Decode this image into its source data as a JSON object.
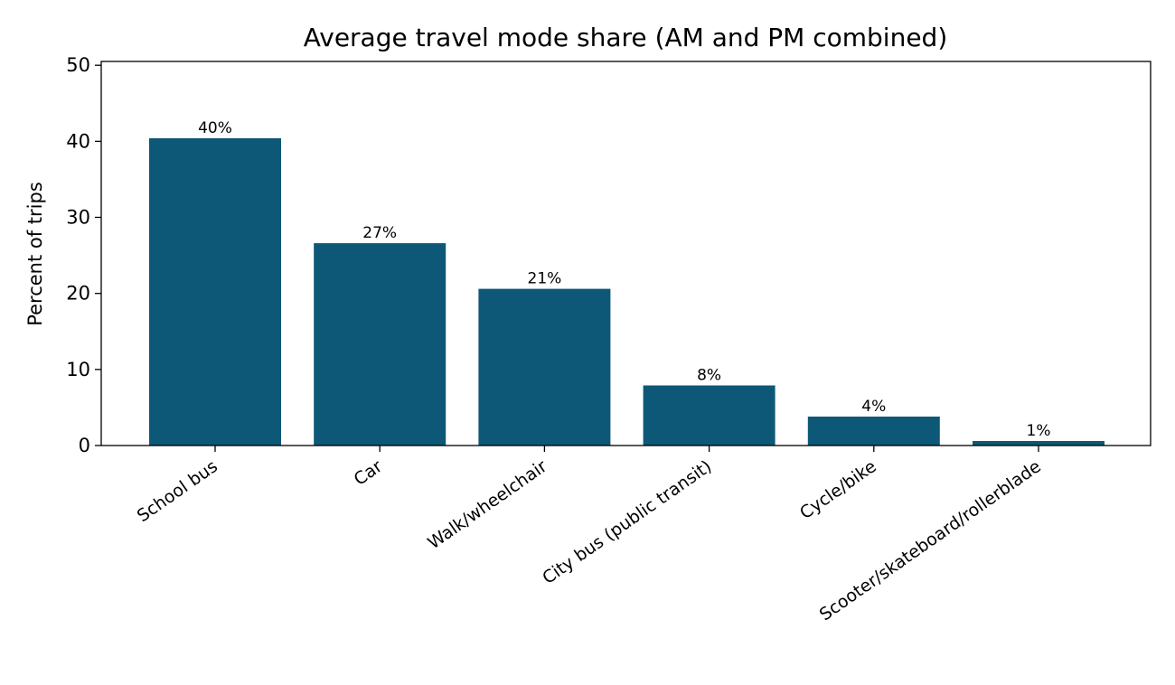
{
  "chart_data": {
    "type": "bar",
    "title": "Average travel mode share (AM and PM combined)",
    "xlabel": "",
    "ylabel": "Percent of trips",
    "categories": [
      "School bus",
      "Car",
      "Walk/wheelchair",
      "City bus (public transit)",
      "Cycle/bike",
      "Scooter/skateboard/rollerblade"
    ],
    "values": [
      40.4,
      26.6,
      20.6,
      7.9,
      3.8,
      0.6
    ],
    "data_labels": [
      "40%",
      "27%",
      "21%",
      "8%",
      "4%",
      "1%"
    ],
    "yticks": [
      0,
      10,
      20,
      30,
      40,
      50
    ],
    "ylim": [
      0,
      50.5
    ],
    "bar_color": "#0e5877",
    "grid": false,
    "legend": "none"
  }
}
